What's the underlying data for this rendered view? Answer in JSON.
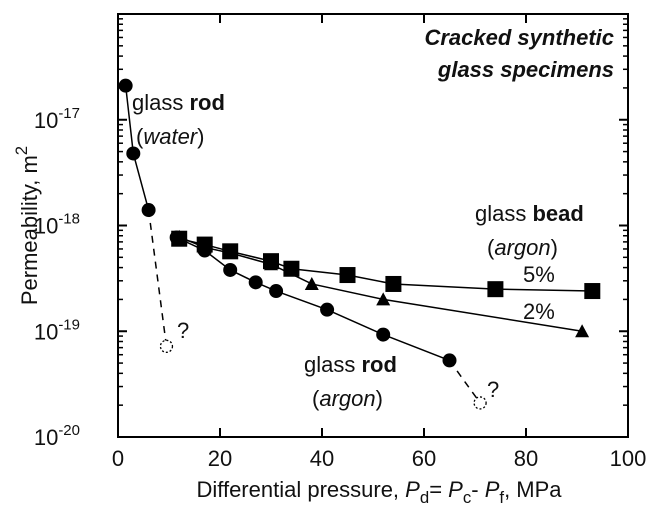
{
  "chart_data": {
    "type": "line",
    "ylog": true,
    "xlim": [
      0,
      100
    ],
    "xticks": [
      0,
      20,
      40,
      60,
      80,
      100
    ],
    "ylim": [
      1e-20,
      1e-16
    ],
    "yticks": [
      {
        "value": 1e-20,
        "label": "10",
        "exponent": "-20"
      },
      {
        "value": 1e-19,
        "label": "10",
        "exponent": "-19"
      },
      {
        "value": 1e-18,
        "label": "10",
        "exponent": "-18"
      },
      {
        "value": 1e-17,
        "label": "10",
        "exponent": "-17"
      }
    ],
    "xlabel": [
      {
        "text": "Differential pressure, "
      },
      {
        "text": "P",
        "style": "italic"
      },
      {
        "text": "d",
        "style": "sub"
      },
      {
        "text": "= "
      },
      {
        "text": "P",
        "style": "italic"
      },
      {
        "text": "c",
        "style": "sub"
      },
      {
        "text": "- "
      },
      {
        "text": "P",
        "style": "italic"
      },
      {
        "text": "f",
        "style": "sub"
      },
      {
        "text": ", MPa"
      }
    ],
    "ylabel": [
      {
        "text": "Permeability, m"
      },
      {
        "text": "2",
        "style": "sup"
      }
    ],
    "color": "#000000",
    "series": [
      {
        "x": [
          6,
          9.5
        ],
        "values": [
          1.4e-18,
          7.2e-20
        ],
        "marker": "open-circle",
        "line": "dashed"
      },
      {
        "x": [
          65,
          71
        ],
        "values": [
          5.3e-20,
          2.1e-20
        ],
        "marker": "open-circle",
        "line": "dashed"
      },
      {
        "x": [
          1.5,
          3,
          6
        ],
        "values": [
          2.1e-17,
          4.8e-18,
          1.4e-18
        ],
        "marker": "circle",
        "line": "solid"
      },
      {
        "x": [
          11.5,
          17,
          22,
          27,
          31,
          41,
          52,
          65
        ],
        "values": [
          7.7e-19,
          5.8e-19,
          3.8e-19,
          2.9e-19,
          2.4e-19,
          1.6e-19,
          9.3e-20,
          5.3e-20
        ],
        "marker": "circle",
        "line": "solid"
      },
      {
        "x": [
          12,
          17,
          22,
          30,
          38,
          52,
          91
        ],
        "values": [
          7.8e-19,
          6.2e-19,
          5.5e-19,
          4.3e-19,
          2.8e-19,
          2e-19,
          1e-19
        ],
        "marker": "triangle",
        "line": "solid"
      },
      {
        "x": [
          12,
          17,
          22,
          30,
          34,
          45,
          54,
          74,
          93
        ],
        "values": [
          7.5e-19,
          6.6e-19,
          5.7e-19,
          4.6e-19,
          3.9e-19,
          3.4e-19,
          2.8e-19,
          2.5e-19,
          2.4e-19
        ],
        "marker": "square",
        "line": "solid"
      }
    ],
    "annotations": [
      {
        "lines": [
          [
            {
              "text": "Cracked synthetic",
              "style": "bold-italic"
            }
          ],
          [
            {
              "text": "glass specimens",
              "style": "bold-italic"
            }
          ]
        ]
      },
      {
        "lines": [
          [
            {
              "text": "glass "
            },
            {
              "text": "rod",
              "style": "bold"
            }
          ],
          [
            {
              "text": "("
            },
            {
              "text": "water",
              "style": "italic"
            },
            {
              "text": ")"
            }
          ]
        ]
      },
      {
        "lines": [
          [
            {
              "text": "glass "
            },
            {
              "text": "bead",
              "style": "bold"
            }
          ],
          [
            {
              "text": "("
            },
            {
              "text": "argon",
              "style": "italic"
            },
            {
              "text": ")"
            }
          ]
        ]
      },
      {
        "lines": [
          [
            {
              "text": "5%"
            }
          ]
        ]
      },
      {
        "lines": [
          [
            {
              "text": "2%"
            }
          ]
        ]
      },
      {
        "lines": [
          [
            {
              "text": "glass "
            },
            {
              "text": "rod",
              "style": "bold"
            }
          ],
          [
            {
              "text": "("
            },
            {
              "text": "argon",
              "style": "italic"
            },
            {
              "text": ")"
            }
          ]
        ]
      },
      {
        "lines": [
          [
            {
              "text": "?"
            }
          ]
        ]
      },
      {
        "lines": [
          [
            {
              "text": "?"
            }
          ]
        ]
      }
    ]
  }
}
